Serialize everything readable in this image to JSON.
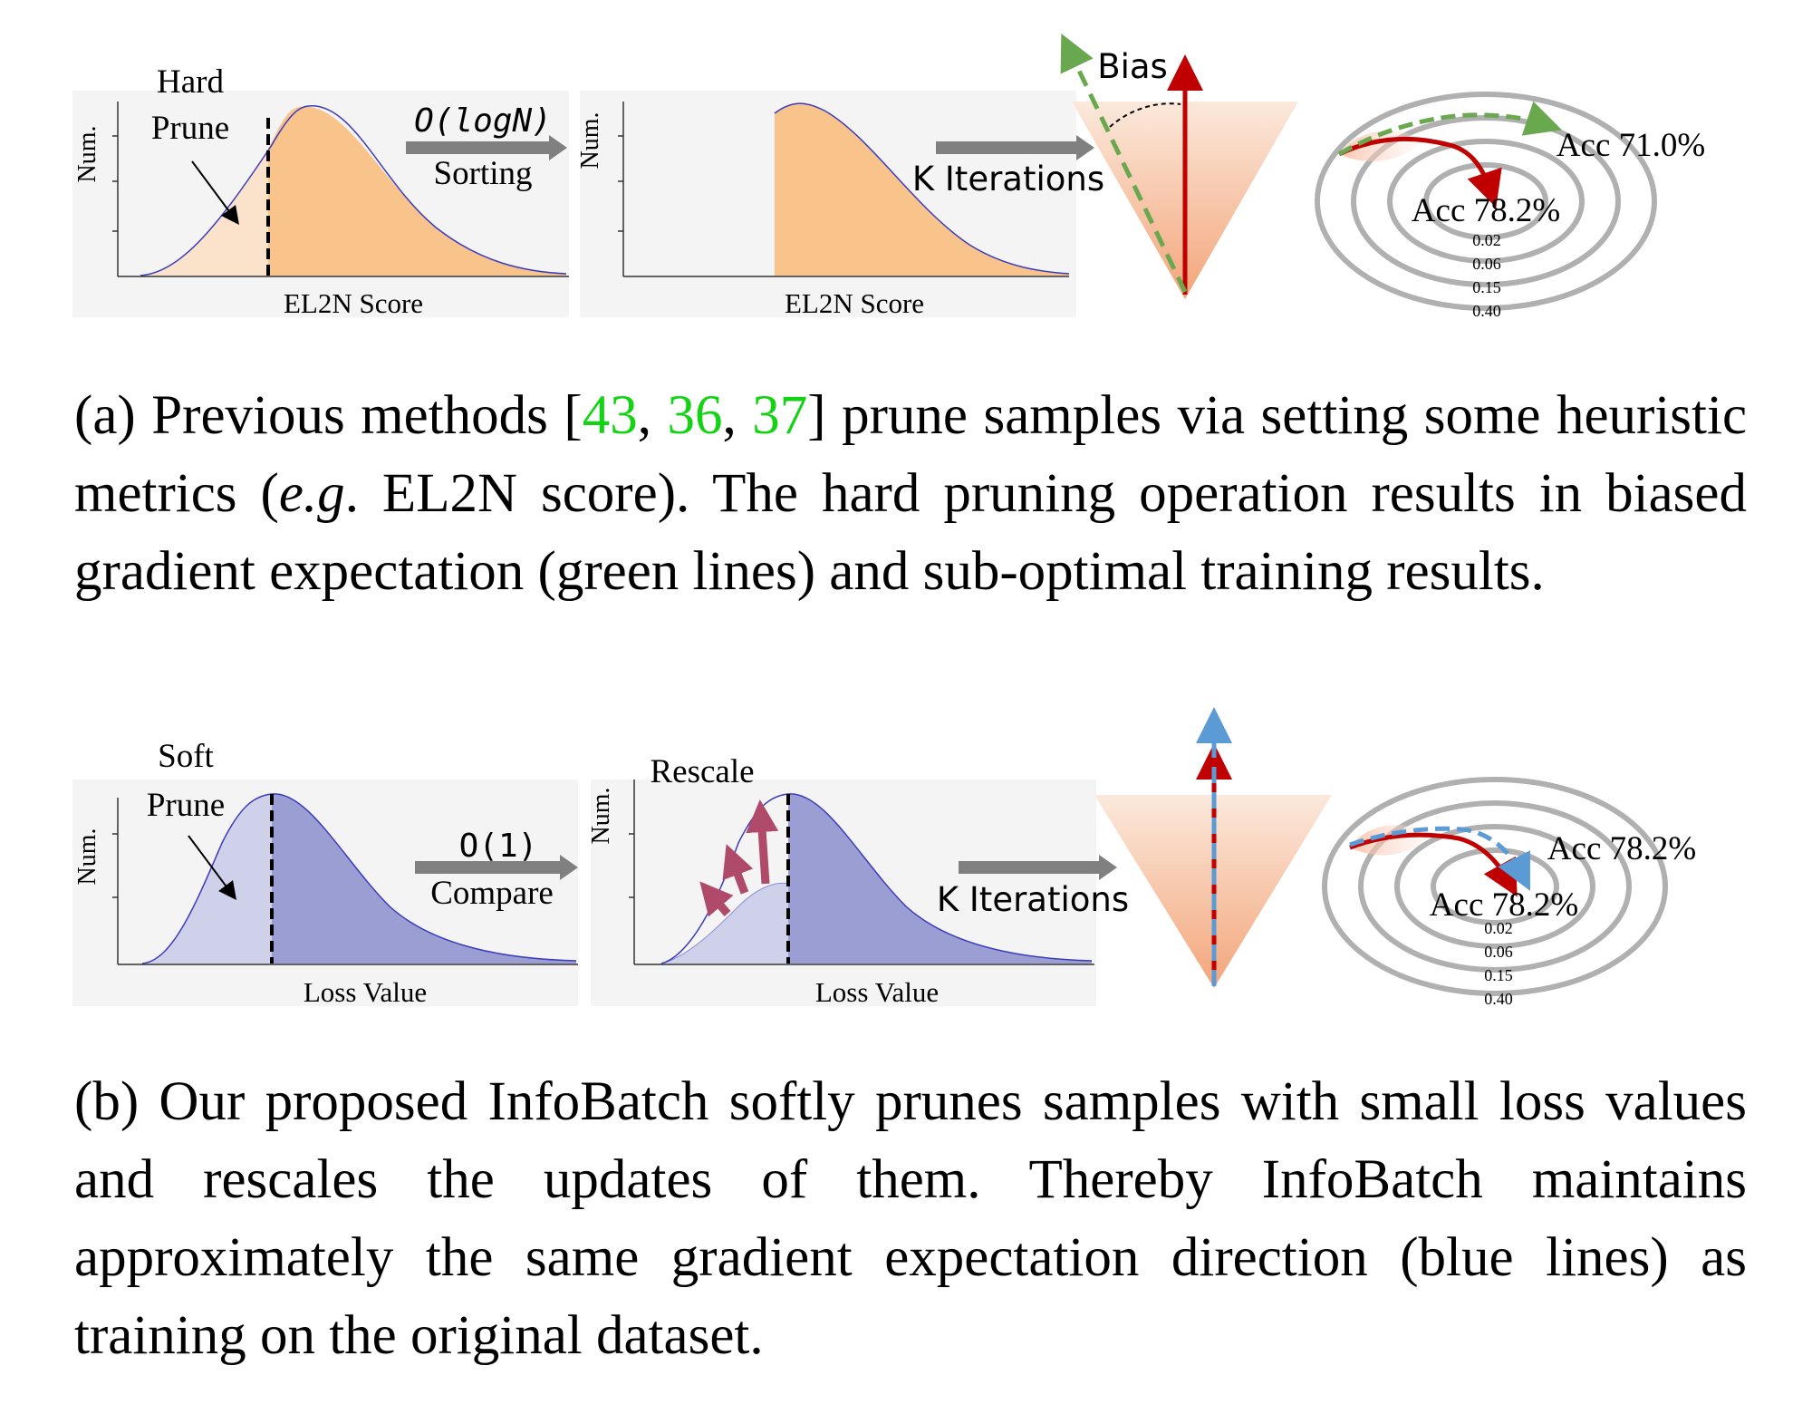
{
  "colors": {
    "orange_fill": "#f8c48c",
    "orange_light": "#fbe3cb",
    "purple_fill": "#9b9ed2",
    "purple_light": "#cfd0ea",
    "curve_line": "#3b3bc0",
    "red_arrow": "#c00000",
    "green_dash": "#6aa84f",
    "blue_dash": "#5b9bd5",
    "gray_arrow": "#808080",
    "cite_green": "#14d214"
  },
  "panel_a": {
    "hist1": {
      "ylabel": "Num.",
      "xlabel": "EL2N Score",
      "note_line1": "Hard",
      "note_line2": "Prune"
    },
    "step1": {
      "line1": "O(logN)",
      "line2": "Sorting"
    },
    "hist2": {
      "ylabel": "Num.",
      "xlabel": "EL2N Score"
    },
    "step2": {
      "line1": "K Iterations"
    },
    "cone": {
      "label": "Bias"
    },
    "contour": {
      "outer_label": "Acc 71.0%",
      "inner_label": "Acc 78.2%",
      "levels": [
        "0.02",
        "0.06",
        "0.15",
        "0.40"
      ]
    }
  },
  "panel_b": {
    "hist1": {
      "ylabel": "Num.",
      "xlabel": "Loss Value",
      "note_line1": "Soft",
      "note_line2": "Prune"
    },
    "step1": {
      "line1": "O(1)",
      "line2": "Compare"
    },
    "hist2": {
      "ylabel": "Num.",
      "xlabel": "Loss Value",
      "note_line1": "Rescale"
    },
    "step2": {
      "line1": "K Iterations"
    },
    "contour": {
      "outer_label": "Acc 78.2%",
      "inner_label": "Acc 78.2%",
      "levels": [
        "0.02",
        "0.06",
        "0.15",
        "0.40"
      ]
    }
  },
  "caption_a": {
    "part1": "(a) Previous methods [",
    "cite1": "43",
    "sep1": ", ",
    "cite2": "36",
    "sep2": ", ",
    "cite3": "37",
    "part2": "] prune samples via setting some heuristic metrics (",
    "eg": "e.g",
    "part3": ". EL2N score). The hard pruning operation results in biased gradient expectation (green lines) and sub-optimal training results."
  },
  "caption_b": "(b) Our proposed InfoBatch softly prunes samples with small loss values and rescales the updates of them. Thereby InfoBatch maintains approximately the same gradient expectation direction (blue lines) as training on the original dataset."
}
